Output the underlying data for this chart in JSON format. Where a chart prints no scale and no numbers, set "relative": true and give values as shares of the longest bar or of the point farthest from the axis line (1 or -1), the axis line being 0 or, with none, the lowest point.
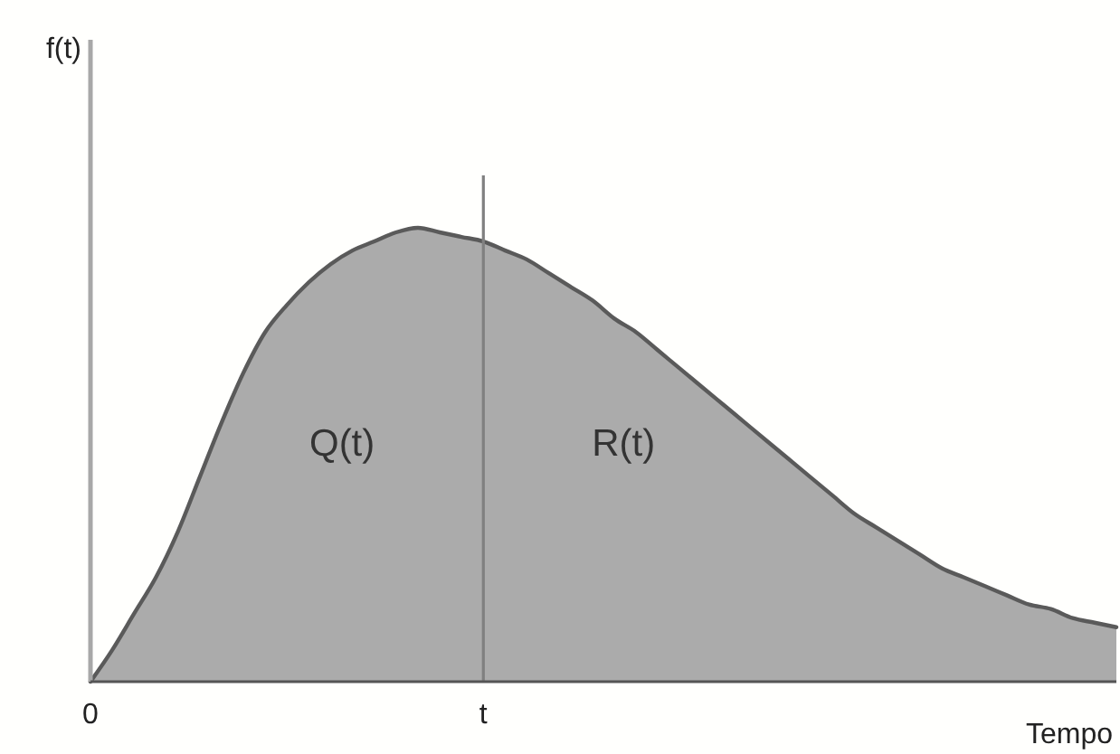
{
  "chart_data": {
    "type": "area",
    "relative": true,
    "xlabel": "Tempo",
    "tick_labels": "x",
    "color": "#ababab",
    "categories": [
      "0",
      null,
      null,
      null,
      null,
      null,
      null,
      null,
      null,
      null,
      null,
      null,
      null,
      null,
      null,
      null,
      null,
      null,
      "t",
      null,
      null,
      null,
      null,
      null,
      null,
      null,
      null,
      null,
      null,
      null,
      null,
      null,
      null,
      null,
      null,
      null,
      null,
      null,
      null,
      null,
      null,
      null,
      null,
      null,
      null,
      null,
      null,
      null
    ],
    "values": [
      0,
      0.07,
      0.15,
      0.23,
      0.33,
      0.45,
      0.57,
      0.68,
      0.77,
      0.83,
      0.88,
      0.92,
      0.95,
      0.97,
      0.99,
      1.0,
      0.99,
      0.98,
      0.97,
      0.95,
      0.93,
      0.9,
      0.87,
      0.84,
      0.8,
      0.77,
      0.73,
      0.69,
      0.65,
      0.61,
      0.57,
      0.53,
      0.49,
      0.45,
      0.41,
      0.37,
      0.34,
      0.31,
      0.28,
      0.25,
      0.23,
      0.21,
      0.19,
      0.17,
      0.16,
      0.14,
      0.13,
      0.12
    ],
    "ref_lines": [
      {
        "axis": "x",
        "value": "t",
        "color": "#808080"
      }
    ],
    "annotations": [
      "f(t)",
      "Q(t)",
      "R(t)"
    ]
  }
}
